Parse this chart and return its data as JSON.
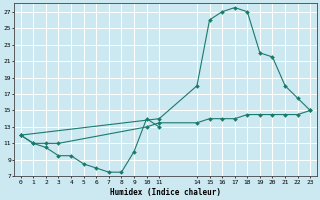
{
  "xlabel": "Humidex (Indice chaleur)",
  "bg_color": "#cce8f0",
  "grid_color": "#ffffff",
  "line_color": "#1a7a6e",
  "xlim": [
    -0.5,
    23.5
  ],
  "ylim": [
    7,
    28
  ],
  "xtick_vals": [
    0,
    1,
    2,
    3,
    4,
    5,
    6,
    7,
    8,
    9,
    10,
    11,
    14,
    15,
    16,
    17,
    18,
    19,
    20,
    21,
    22,
    23
  ],
  "ytick_vals": [
    7,
    9,
    11,
    13,
    15,
    17,
    19,
    21,
    23,
    25,
    27
  ],
  "s1x": [
    0,
    1,
    2,
    3,
    4,
    5,
    6,
    7,
    8,
    9,
    10,
    11
  ],
  "s1y": [
    12,
    11,
    10.5,
    9.5,
    9.5,
    8.5,
    8,
    7.5,
    7.5,
    10,
    14,
    13
  ],
  "s2x": [
    0,
    1,
    2,
    3,
    10,
    11,
    14,
    15,
    16,
    17,
    18,
    19,
    20,
    21,
    22,
    23
  ],
  "s2y": [
    12,
    11,
    11,
    11,
    13,
    13.5,
    13.5,
    14,
    14,
    14,
    14.5,
    14.5,
    14.5,
    14.5,
    14.5,
    15
  ],
  "s3x": [
    0,
    11,
    14,
    15,
    16,
    17,
    18,
    19,
    20,
    21,
    22,
    23
  ],
  "s3y": [
    12,
    14,
    18,
    26,
    27,
    27.5,
    27,
    22,
    21.5,
    18,
    16.5,
    15
  ]
}
